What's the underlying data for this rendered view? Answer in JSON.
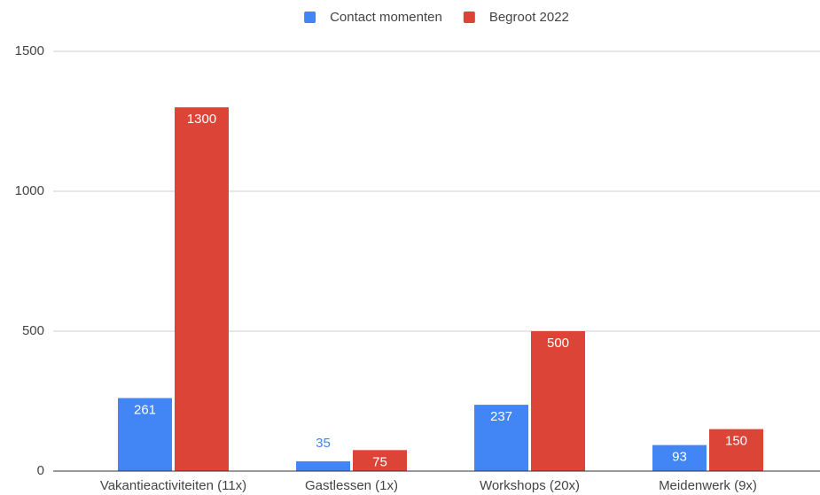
{
  "chart_data": {
    "type": "bar",
    "categories": [
      "Vakantieactiviteiten (11x)",
      "Gastlessen (1x)",
      "Workshops (20x)",
      "Meidenwerk (9x)"
    ],
    "series": [
      {
        "name": "Contact momenten",
        "color": "#4285f4",
        "values": [
          261,
          35,
          237,
          93
        ]
      },
      {
        "name": "Begroot 2022",
        "color": "#db4437",
        "values": [
          1300,
          75,
          500,
          150
        ]
      }
    ],
    "ylim": [
      0,
      1500
    ],
    "yticks": [
      0,
      500,
      1000,
      1500
    ],
    "grid": true,
    "legend": "top",
    "data_labels": true
  }
}
